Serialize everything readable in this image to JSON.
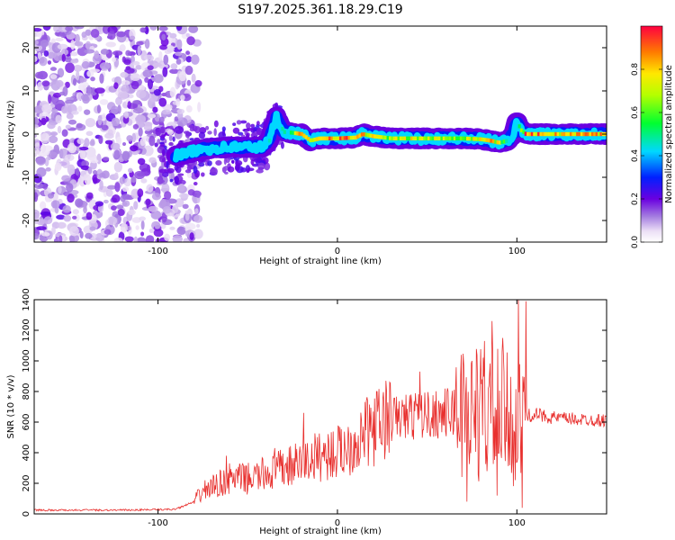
{
  "title": "S197.2025.361.18.29.C19",
  "chart_data": [
    {
      "type": "heatmap",
      "title": "S197.2025.361.18.29.C19",
      "xlabel": "Height of straight line (km)",
      "ylabel": "Frequency (Hz)",
      "xlim": [
        -169,
        150
      ],
      "ylim": [
        -25,
        25
      ],
      "xticks": [
        -100,
        0,
        100
      ],
      "yticks": [
        -20,
        -10,
        0,
        10,
        20
      ],
      "colorbar": {
        "label": "Normalized spectral amplitude",
        "range": [
          0,
          1
        ],
        "ticks": [
          0.0,
          0.2,
          0.4,
          0.6,
          0.8
        ]
      },
      "ridge": {
        "description": "narrow spectral ridge near 0 Hz from about -90 km to 150 km",
        "x": [
          -90,
          -75,
          -60,
          -50,
          -42,
          -38,
          -34,
          -30,
          -25,
          -20,
          -15,
          -10,
          0,
          10,
          14,
          20,
          30,
          40,
          50,
          60,
          70,
          80,
          85,
          90,
          95,
          98,
          100,
          102,
          105,
          110,
          120,
          130,
          140,
          150
        ],
        "freq": [
          -5,
          -3.5,
          -3,
          -3,
          -3,
          -1.5,
          4,
          0.5,
          0.3,
          0,
          -1.5,
          -1,
          -1,
          -0.8,
          0,
          -0.5,
          -1,
          -1,
          -1,
          -1,
          -1,
          -1.2,
          -1.5,
          -2,
          -1.5,
          0,
          3,
          1,
          0,
          0,
          0,
          0,
          0,
          0
        ],
        "amplitude": [
          0.3,
          0.35,
          0.35,
          0.35,
          0.4,
          0.45,
          0.4,
          0.45,
          0.6,
          0.9,
          0.7,
          0.95,
          0.95,
          0.85,
          0.9,
          0.75,
          0.7,
          0.75,
          0.75,
          0.7,
          0.75,
          0.8,
          0.95,
          0.7,
          0.5,
          0.4,
          0.35,
          0.6,
          0.95,
          0.9,
          0.85,
          0.85,
          0.9,
          0.85
        ]
      },
      "noise_region": {
        "description": "scattered low-amplitude noise blobs across all frequencies",
        "x_range": [
          -169,
          -85
        ]
      }
    },
    {
      "type": "line",
      "xlabel": "Height of straight line (km)",
      "ylabel": "SNR (10 * v/v)",
      "xlim": [
        -169,
        150
      ],
      "ylim": [
        0,
        1400
      ],
      "xticks": [
        -100,
        0,
        100
      ],
      "yticks": [
        0,
        200,
        400,
        600,
        800,
        1000,
        1200,
        1400
      ],
      "line_color": "#e8302e",
      "envelope_x": [
        -169,
        -120,
        -90,
        -80,
        -75,
        -65,
        -60,
        -50,
        -40,
        -30,
        -20,
        -10,
        0,
        10,
        20,
        30,
        40,
        50,
        60,
        70,
        80,
        90,
        95,
        100,
        105,
        110,
        120,
        130,
        140,
        150
      ],
      "envelope_y": [
        25,
        25,
        30,
        80,
        150,
        200,
        230,
        230,
        260,
        300,
        330,
        380,
        400,
        470,
        560,
        620,
        640,
        650,
        660,
        660,
        660,
        640,
        620,
        560,
        640,
        650,
        630,
        620,
        615,
        610
      ],
      "spikes": [
        {
          "x": -62,
          "y": 380
        },
        {
          "x": -35,
          "y": 430
        },
        {
          "x": -19,
          "y": 660
        },
        {
          "x": 16,
          "y": 740
        },
        {
          "x": 27,
          "y": 870
        },
        {
          "x": 46,
          "y": 930
        },
        {
          "x": 69,
          "y": 1040
        },
        {
          "x": 75,
          "y": 1000
        },
        {
          "x": 82,
          "y": 1130
        },
        {
          "x": 86,
          "y": 1260
        },
        {
          "x": 92,
          "y": 1150
        },
        {
          "x": 101,
          "y": 1420
        },
        {
          "x": 105,
          "y": 1390
        },
        {
          "x": 72,
          "y": 80
        },
        {
          "x": 89,
          "y": 120
        },
        {
          "x": 103,
          "y": 40
        }
      ]
    }
  ]
}
